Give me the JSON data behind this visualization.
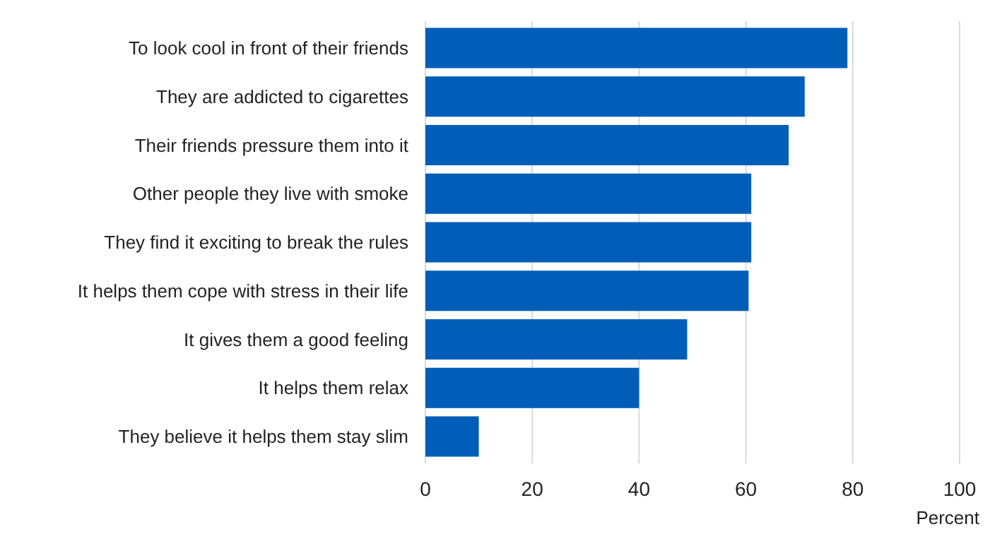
{
  "chart_data": {
    "type": "bar",
    "orientation": "horizontal",
    "xlabel": "Percent",
    "categories": [
      "To look cool in front of their friends",
      "They are addicted to cigarettes",
      "Their friends pressure them into it",
      "Other people they live with smoke",
      "They find it exciting to break the rules",
      "It helps them cope with stress in their life",
      "It gives them a good feeling",
      "It helps them relax",
      "They believe it helps them stay slim"
    ],
    "values": [
      79,
      71,
      68,
      61,
      61,
      60.5,
      49,
      40,
      10
    ],
    "color": "#005eb8",
    "xlim": [
      0,
      100
    ],
    "xticks": [
      0,
      20,
      40,
      60,
      80,
      100
    ],
    "grid": "x"
  }
}
